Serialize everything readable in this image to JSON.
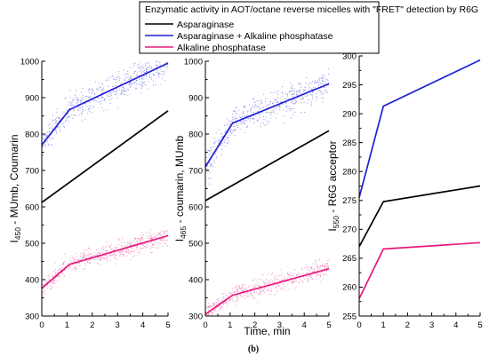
{
  "caption": "(b)",
  "legend": {
    "title": "Enzymatic activity in AOT/octane reverse micelles with \"FRET\" detection by R6G",
    "entries": [
      {
        "label": "Asparaginase",
        "color": "#000000"
      },
      {
        "label": "Asparaginase + Alkaline phosphatase",
        "color": "#1f1fd6"
      },
      {
        "label": "Alkaline phosphatase",
        "color": "#e5197d"
      }
    ]
  },
  "chart_data": [
    {
      "type": "line",
      "ylabel_main": "I",
      "ylabel_sub": "450",
      "ylabel_rest": " - MUmb, Coumarin",
      "xlabel": "",
      "xlim": [
        0,
        5
      ],
      "ylim": [
        300,
        1000
      ],
      "xticks": [
        "0",
        "1",
        "2",
        "3",
        "4",
        "5"
      ],
      "yticks": [
        "300",
        "400",
        "500",
        "600",
        "700",
        "800",
        "900",
        "1000"
      ],
      "series": [
        {
          "color": "#000000",
          "x": [
            0,
            5
          ],
          "y": [
            612,
            864
          ]
        },
        {
          "color": "#1f1fd6",
          "x": [
            0,
            1.1,
            5
          ],
          "y": [
            770,
            867,
            995
          ],
          "scatter": true
        },
        {
          "color": "#e5197d",
          "x": [
            0,
            1.1,
            5
          ],
          "y": [
            376,
            442,
            521
          ],
          "scatter": true
        }
      ]
    },
    {
      "type": "line",
      "ylabel_main": "I",
      "ylabel_sub": "465",
      "ylabel_rest": " - coumarin, MUmb",
      "xlabel": "Time, min",
      "xlim": [
        0,
        5
      ],
      "ylim": [
        300,
        1000
      ],
      "xticks": [
        "0",
        "1",
        "2",
        "3",
        "4",
        "5"
      ],
      "yticks": [
        "300",
        "400",
        "500",
        "600",
        "700",
        "800",
        "900",
        "1000"
      ],
      "series": [
        {
          "color": "#000000",
          "x": [
            0,
            5
          ],
          "y": [
            617,
            809
          ]
        },
        {
          "color": "#1f1fd6",
          "x": [
            0,
            1.1,
            5
          ],
          "y": [
            710,
            830,
            938
          ],
          "scatter": true
        },
        {
          "color": "#e5197d",
          "x": [
            0,
            1.1,
            5
          ],
          "y": [
            305,
            357,
            430
          ],
          "scatter": true
        }
      ]
    },
    {
      "type": "line",
      "ylabel_main": "I",
      "ylabel_sub": "550",
      "ylabel_rest": " - R6G acceptor",
      "xlabel": "",
      "xlim": [
        0,
        5
      ],
      "ylim": [
        255,
        300
      ],
      "xticks": [
        "0",
        "1",
        "2",
        "3",
        "4",
        "5"
      ],
      "yticks": [
        "255",
        "260",
        "265",
        "270",
        "275",
        "280",
        "285",
        "290",
        "295",
        "300"
      ],
      "series": [
        {
          "color": "#000000",
          "x": [
            0,
            1,
            5
          ],
          "y": [
            267,
            274.8,
            277.5
          ]
        },
        {
          "color": "#1f1fd6",
          "x": [
            0,
            1,
            5
          ],
          "y": [
            275.5,
            291.3,
            299.3
          ]
        },
        {
          "color": "#e5197d",
          "x": [
            0,
            1,
            5
          ],
          "y": [
            258,
            266.6,
            267.7
          ]
        }
      ]
    }
  ]
}
